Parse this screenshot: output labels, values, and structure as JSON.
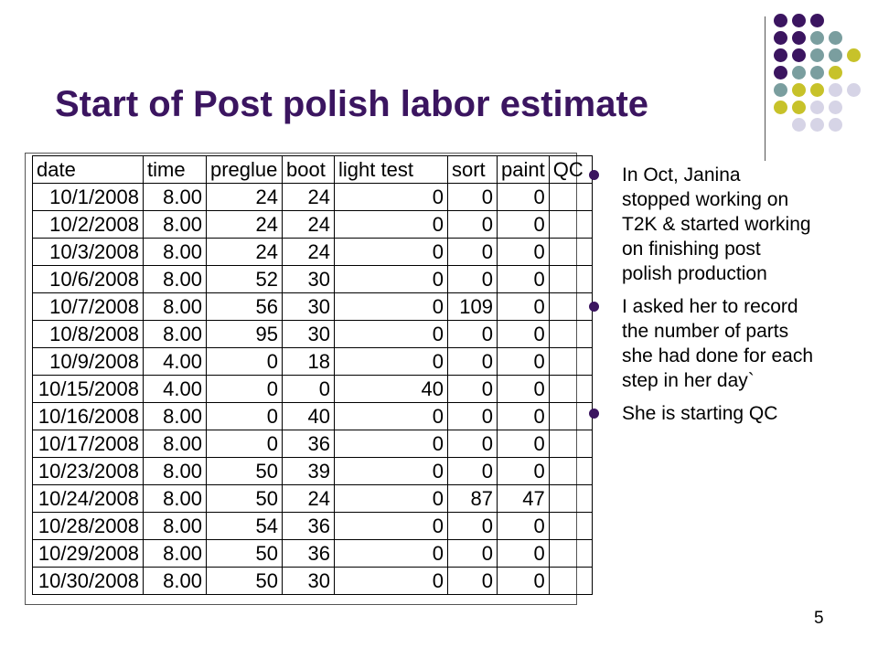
{
  "title": "Start of Post polish labor  estimate",
  "colors": {
    "purple": "#3b1560",
    "teal": "#7a9e9f",
    "yellow": "#c7c22a",
    "lavender": "#d6d4e6"
  },
  "table": {
    "headers": [
      "date",
      "time",
      "preglue",
      "boot",
      "light test",
      "sort",
      "paint",
      "QC"
    ],
    "rows": [
      [
        "10/1/2008",
        "8.00",
        "24",
        "24",
        "0",
        "0",
        "0",
        ""
      ],
      [
        "10/2/2008",
        "8.00",
        "24",
        "24",
        "0",
        "0",
        "0",
        ""
      ],
      [
        "10/3/2008",
        "8.00",
        "24",
        "24",
        "0",
        "0",
        "0",
        ""
      ],
      [
        "10/6/2008",
        "8.00",
        "52",
        "30",
        "0",
        "0",
        "0",
        ""
      ],
      [
        "10/7/2008",
        "8.00",
        "56",
        "30",
        "0",
        "109",
        "0",
        ""
      ],
      [
        "10/8/2008",
        "8.00",
        "95",
        "30",
        "0",
        "0",
        "0",
        ""
      ],
      [
        "10/9/2008",
        "4.00",
        "0",
        "18",
        "0",
        "0",
        "0",
        ""
      ],
      [
        "10/15/2008",
        "4.00",
        "0",
        "0",
        "40",
        "0",
        "0",
        ""
      ],
      [
        "10/16/2008",
        "8.00",
        "0",
        "40",
        "0",
        "0",
        "0",
        ""
      ],
      [
        "10/17/2008",
        "8.00",
        "0",
        "36",
        "0",
        "0",
        "0",
        ""
      ],
      [
        "10/23/2008",
        "8.00",
        "50",
        "39",
        "0",
        "0",
        "0",
        ""
      ],
      [
        "10/24/2008",
        "8.00",
        "50",
        "24",
        "0",
        "87",
        "47",
        ""
      ],
      [
        "10/28/2008",
        "8.00",
        "54",
        "36",
        "0",
        "0",
        "0",
        ""
      ],
      [
        "10/29/2008",
        "8.00",
        "50",
        "36",
        "0",
        "0",
        "0",
        ""
      ],
      [
        "10/30/2008",
        "8.00",
        "50",
        "30",
        "0",
        "0",
        "0",
        ""
      ]
    ]
  },
  "bullets": [
    "In Oct, Janina stopped working on T2K & started working on finishing post polish production",
    "I asked her to record the number of parts she had done for each step in her day`",
    "She is starting QC"
  ],
  "page_number": "5"
}
